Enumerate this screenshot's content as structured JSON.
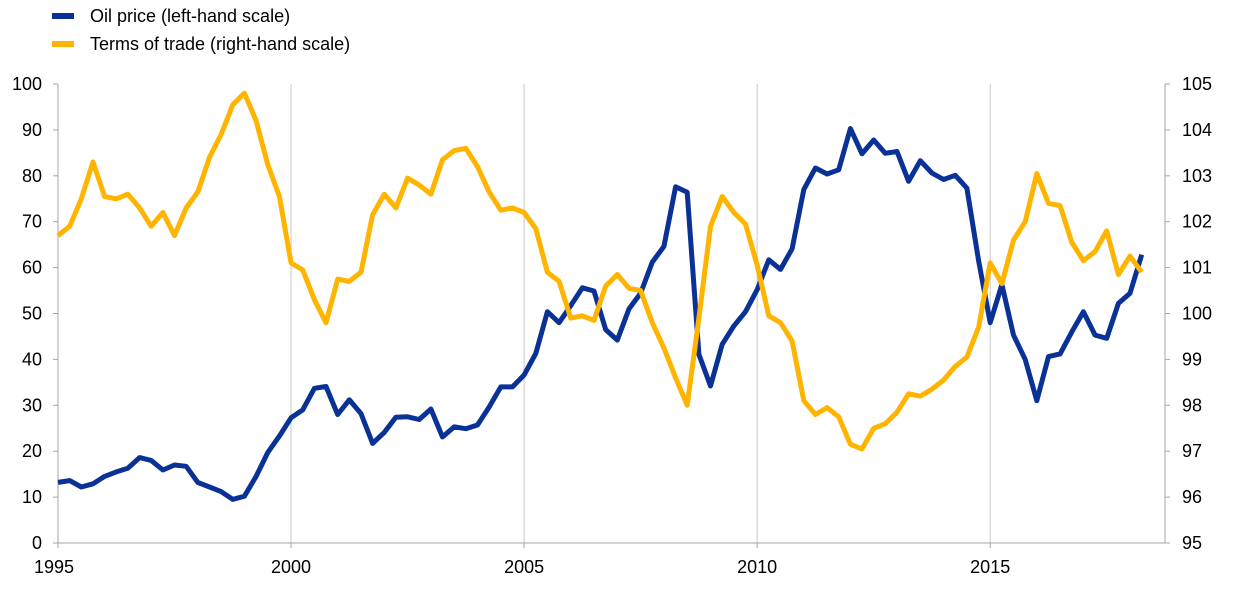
{
  "chart_data": {
    "type": "line",
    "title": "",
    "xlabel": "",
    "ylabel_left": "",
    "ylabel_right": "",
    "x_range": [
      1995,
      2018.75
    ],
    "x_ticks": [
      1995,
      2000,
      2005,
      2010,
      2015
    ],
    "left_axis": {
      "range": [
        0,
        100
      ],
      "ticks": [
        0,
        10,
        20,
        30,
        40,
        50,
        60,
        70,
        80,
        90,
        100
      ]
    },
    "right_axis": {
      "range": [
        95,
        105
      ],
      "ticks": [
        95,
        96,
        97,
        98,
        99,
        100,
        101,
        102,
        103,
        104,
        105
      ]
    },
    "vertical_gridlines": true,
    "legend_position": "top-left",
    "x": [
      1995.0,
      1995.25,
      1995.5,
      1995.75,
      1996.0,
      1996.25,
      1996.5,
      1996.75,
      1997.0,
      1997.25,
      1997.5,
      1997.75,
      1998.0,
      1998.25,
      1998.5,
      1998.75,
      1999.0,
      1999.25,
      1999.5,
      1999.75,
      2000.0,
      2000.25,
      2000.5,
      2000.75,
      2001.0,
      2001.25,
      2001.5,
      2001.75,
      2002.0,
      2002.25,
      2002.5,
      2002.75,
      2003.0,
      2003.25,
      2003.5,
      2003.75,
      2004.0,
      2004.25,
      2004.5,
      2004.75,
      2005.0,
      2005.25,
      2005.5,
      2005.75,
      2006.0,
      2006.25,
      2006.5,
      2006.75,
      2007.0,
      2007.25,
      2007.5,
      2007.75,
      2008.0,
      2008.25,
      2008.5,
      2008.75,
      2009.0,
      2009.25,
      2009.5,
      2009.75,
      2010.0,
      2010.25,
      2010.5,
      2010.75,
      2011.0,
      2011.25,
      2011.5,
      2011.75,
      2012.0,
      2012.25,
      2012.5,
      2012.75,
      2013.0,
      2013.25,
      2013.5,
      2013.75,
      2014.0,
      2014.25,
      2014.5,
      2014.75,
      2015.0,
      2015.25,
      2015.5,
      2015.75,
      2016.0,
      2016.25,
      2016.5,
      2016.75,
      2017.0,
      2017.25,
      2017.5,
      2017.75,
      2018.0,
      2018.25
    ],
    "series": [
      {
        "name": "Oil price (left-hand scale)",
        "axis": "left",
        "color": "#0a3296",
        "values": [
          13.2,
          13.6,
          12.2,
          12.9,
          14.5,
          15.5,
          16.3,
          18.6,
          18.0,
          15.9,
          17.0,
          16.7,
          13.2,
          12.2,
          11.2,
          9.5,
          10.2,
          14.5,
          19.7,
          23.3,
          27.3,
          29.0,
          33.7,
          34.1,
          28.0,
          31.2,
          28.2,
          21.7,
          24.1,
          27.4,
          27.5,
          26.9,
          29.2,
          23.1,
          25.3,
          24.9,
          25.7,
          29.6,
          34.0,
          34.0,
          36.6,
          41.3,
          50.4,
          48.0,
          51.7,
          55.6,
          54.9,
          46.5,
          44.2,
          51.0,
          54.4,
          61.2,
          64.6,
          77.6,
          76.4,
          41.1,
          34.2,
          43.3,
          47.3,
          50.4,
          55.2,
          61.7,
          59.6,
          64.1,
          77.0,
          81.7,
          80.4,
          81.3,
          90.3,
          84.8,
          87.8,
          84.9,
          85.3,
          78.8,
          83.3,
          80.6,
          79.2,
          80.1,
          77.3,
          61.5,
          48.0,
          56.3,
          45.3,
          40.0,
          31.0,
          40.6,
          41.2,
          46.0,
          50.4,
          45.3,
          44.6,
          52.2,
          54.4,
          62.8
        ]
      },
      {
        "name": "Terms of trade (right-hand scale)",
        "axis": "right",
        "color": "#ffb400",
        "values": [
          101.7,
          101.9,
          102.5,
          103.3,
          102.55,
          102.5,
          102.6,
          102.3,
          101.9,
          102.2,
          101.7,
          102.3,
          102.65,
          103.4,
          103.9,
          104.55,
          104.8,
          104.2,
          103.25,
          102.55,
          101.1,
          100.95,
          100.3,
          99.8,
          100.75,
          100.7,
          100.9,
          102.15,
          102.6,
          102.3,
          102.95,
          102.8,
          102.6,
          103.35,
          103.55,
          103.6,
          103.2,
          102.65,
          102.25,
          102.3,
          102.2,
          101.85,
          100.9,
          100.7,
          99.9,
          99.95,
          99.85,
          100.6,
          100.85,
          100.55,
          100.5,
          99.8,
          99.25,
          98.6,
          98.0,
          99.9,
          101.9,
          102.55,
          102.2,
          101.95,
          101.05,
          99.95,
          99.8,
          99.4,
          98.1,
          97.8,
          97.95,
          97.75,
          97.15,
          97.05,
          97.5,
          97.6,
          97.85,
          98.25,
          98.2,
          98.35,
          98.55,
          98.85,
          99.05,
          99.7,
          101.1,
          100.65,
          101.6,
          102.0,
          103.05,
          102.4,
          102.35,
          101.55,
          101.15,
          101.35,
          101.8,
          100.85,
          101.25,
          100.9
        ]
      }
    ]
  }
}
